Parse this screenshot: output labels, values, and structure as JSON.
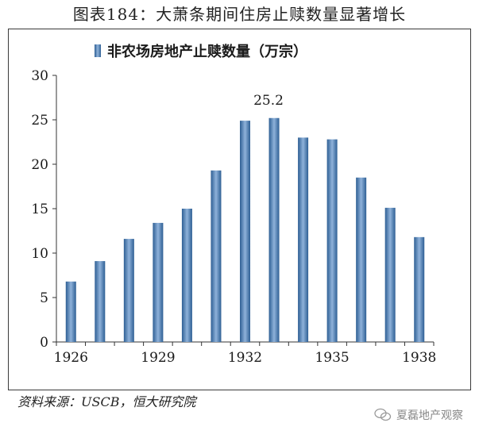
{
  "figure": {
    "title": "图表184：大萧条期间住房止赎数量显著增长",
    "source": "资料来源：USCB，恒大研究院",
    "watermark": "夏磊地产观察"
  },
  "colors": {
    "bar_dark": "#2e5f94",
    "bar_light": "#8fb2da",
    "axis": "#333333"
  },
  "chart_data": {
    "type": "bar",
    "title": "非农场房地产止赎数量（万宗）",
    "xlabel": "",
    "ylabel": "",
    "ylim": [
      0,
      30
    ],
    "yticks": [
      0,
      5,
      10,
      15,
      20,
      25,
      30
    ],
    "categories": [
      "1926",
      "1927",
      "1928",
      "1929",
      "1930",
      "1931",
      "1932",
      "1933",
      "1934",
      "1935",
      "1936",
      "1937",
      "1938"
    ],
    "xtick_labels": [
      "1926",
      "1929",
      "1932",
      "1935",
      "1938"
    ],
    "series": [
      {
        "name": "非农场房地产止赎数量（万宗）",
        "values": [
          6.8,
          9.1,
          11.6,
          13.4,
          15.0,
          19.3,
          24.9,
          25.2,
          23.0,
          22.8,
          18.5,
          15.1,
          11.8
        ]
      }
    ],
    "annotations": [
      {
        "category": "1933",
        "text": "25.2"
      }
    ],
    "grid": false,
    "legend": "top"
  }
}
